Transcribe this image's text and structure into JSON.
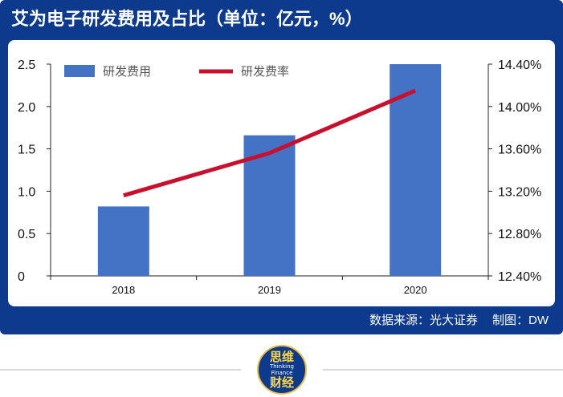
{
  "title": "艾为电子研发费用及占比（单位：亿元，%）",
  "source": {
    "text": "数据来源：光大证券",
    "credit": "制图：DW"
  },
  "logo": {
    "top_text": "思维",
    "mid_text_1": "Thinking",
    "mid_text_2": "Finance",
    "bottom_text": "财经"
  },
  "colors": {
    "frame": "#0d3a8c",
    "bar": "#4472c4",
    "line": "#c8102e"
  },
  "chart_data": {
    "type": "bar+line",
    "categories": [
      "2018",
      "2019",
      "2020"
    ],
    "series": [
      {
        "name": "研发费用",
        "type": "bar",
        "axis": "left",
        "values": [
          0.82,
          1.66,
          2.5
        ]
      },
      {
        "name": "研发费率",
        "type": "line",
        "axis": "right",
        "values": [
          13.16,
          13.56,
          14.15
        ]
      }
    ],
    "left_axis": {
      "min": 0,
      "max": 2.5,
      "ticks": [
        "0",
        "0.5",
        "1.0",
        "1.5",
        "2.0",
        "2.5"
      ]
    },
    "right_axis": {
      "min": 12.4,
      "max": 14.4,
      "ticks": [
        "12.40%",
        "12.80%",
        "13.20%",
        "13.60%",
        "14.00%",
        "14.40%"
      ]
    },
    "legend": {
      "placement": "top-left"
    },
    "grid": false
  }
}
